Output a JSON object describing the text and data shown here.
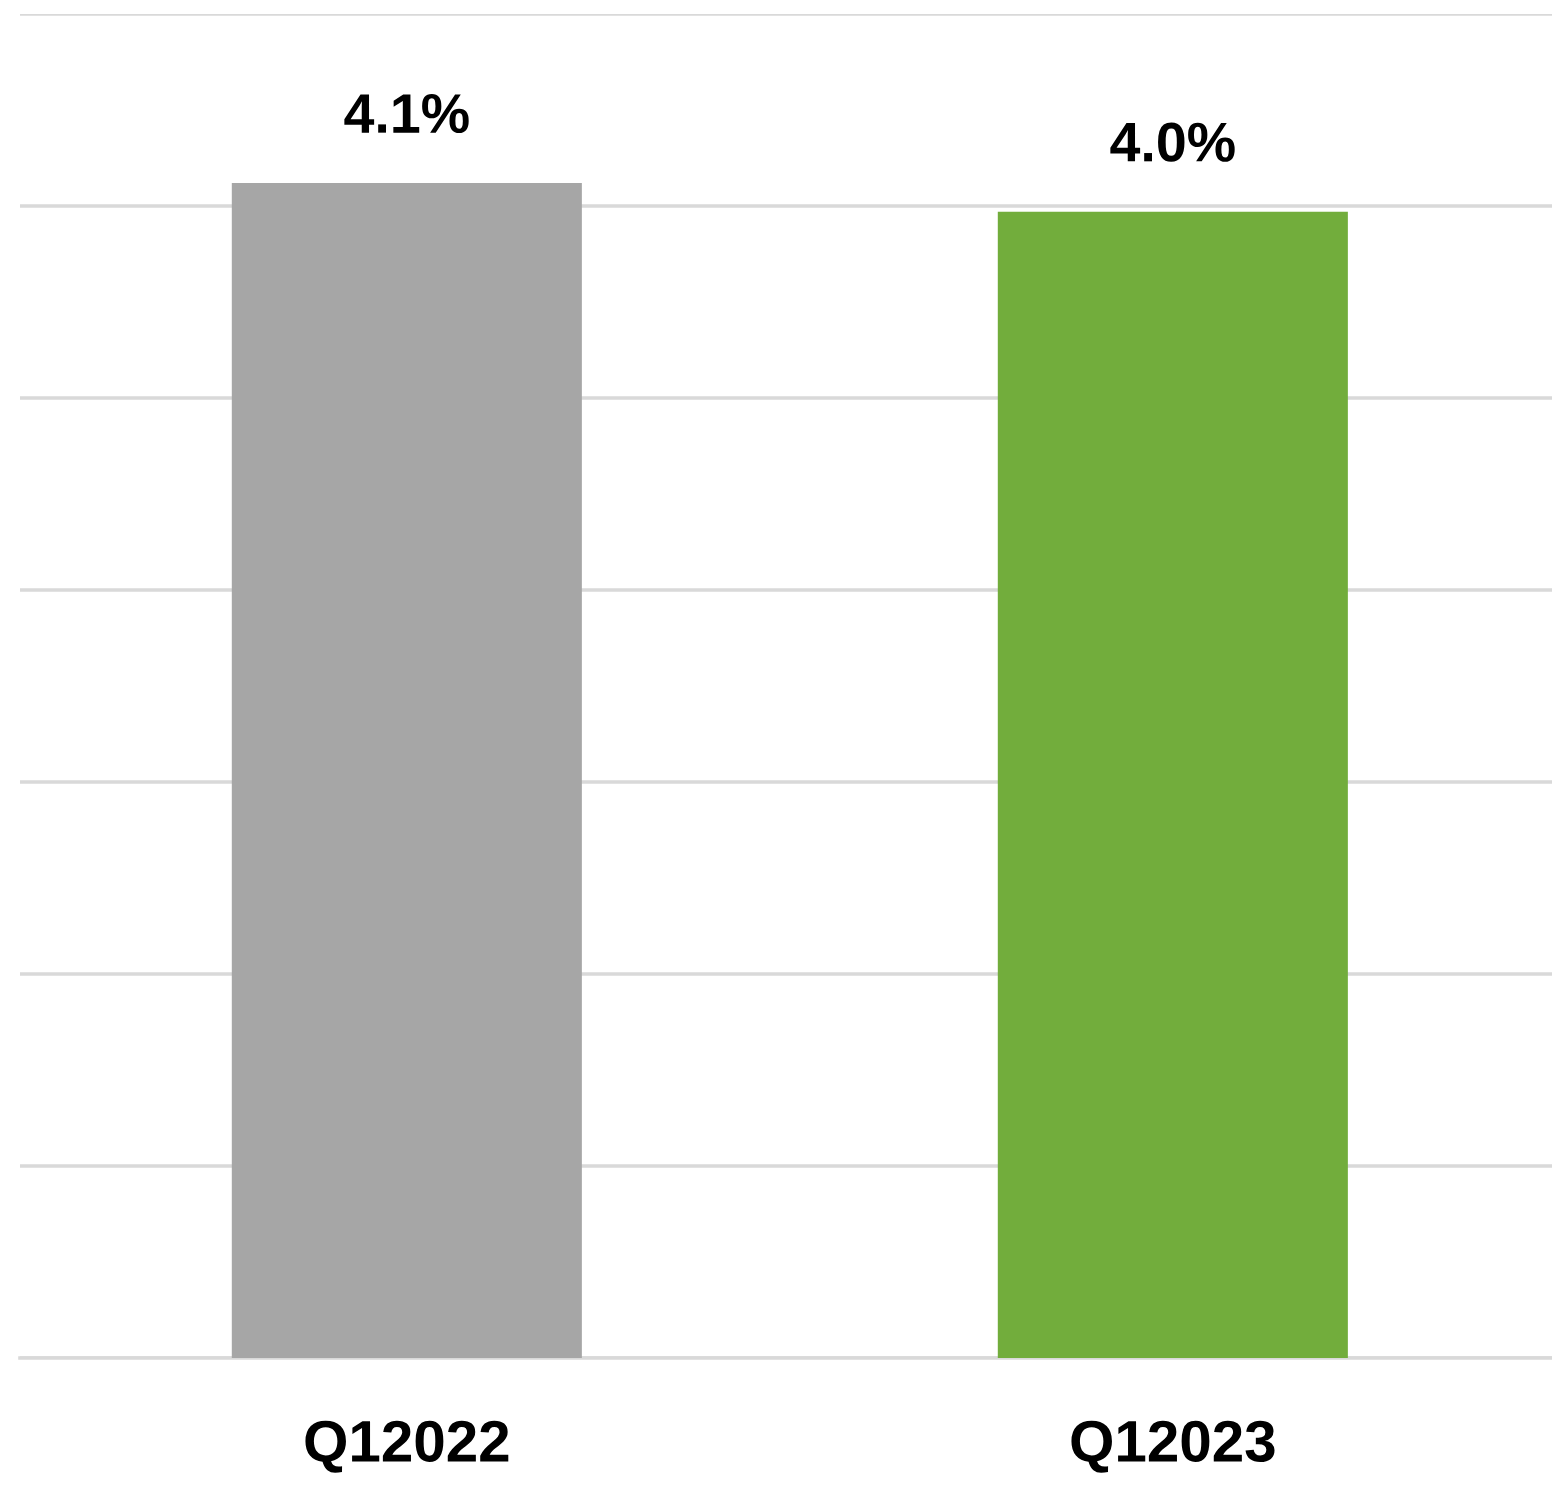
{
  "chart_data": {
    "type": "bar",
    "categories": [
      "Q12022",
      "Q12023"
    ],
    "values": [
      4.1,
      4.0
    ],
    "colors": [
      "#a6a6a6",
      "#72ad3c"
    ],
    "value_labels": [
      "4.1%",
      "4.0%"
    ],
    "ylim": [
      0,
      4.69
    ],
    "yticks": [
      {
        "value": 0,
        "label": null
      },
      {
        "value": 0.67,
        "label": null
      },
      {
        "value": 1.34,
        "label": null
      },
      {
        "value": 2.01,
        "label": null
      },
      {
        "value": 2.68,
        "label": null
      },
      {
        "value": 3.35,
        "label": null
      },
      {
        "value": 4.02,
        "label": null
      },
      {
        "value": 4.69,
        "label": null
      }
    ],
    "tick_labels": "x",
    "grid": "y",
    "legend": false
  }
}
